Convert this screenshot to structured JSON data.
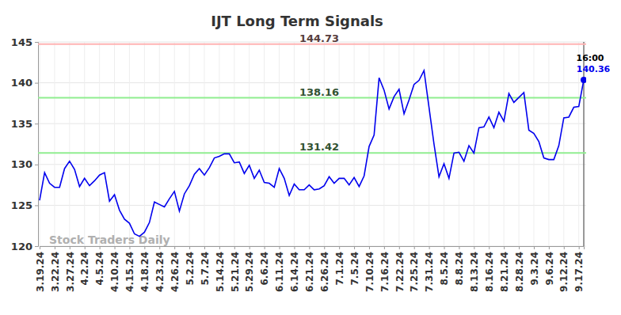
{
  "chart_data": {
    "type": "line",
    "title": "IJT Long Term Signals",
    "watermark": "Stock Traders Daily",
    "color": "#0000ee",
    "grid": true,
    "ylim": [
      120,
      145
    ],
    "yticks": [
      120,
      125,
      130,
      135,
      140,
      145
    ],
    "reference_lines": [
      {
        "value": 144.73,
        "color": "#ffb3b3"
      },
      {
        "value": 138.16,
        "color": "#90ee90"
      },
      {
        "value": 131.42,
        "color": "#90ee90"
      }
    ],
    "annotations": [
      {
        "text": "16:00"
      }
    ],
    "categories": [
      "3.19.24",
      null,
      null,
      "3.22.24",
      null,
      null,
      "3.27.24",
      null,
      null,
      "4.2.24",
      null,
      null,
      "4.5.24",
      null,
      null,
      "4.10.24",
      null,
      null,
      "4.15.24",
      null,
      null,
      "4.18.24",
      null,
      null,
      "4.23.24",
      null,
      null,
      "4.26.24",
      null,
      null,
      "5.2.24",
      null,
      null,
      "5.7.24",
      null,
      null,
      "5.14.24",
      null,
      null,
      "5.21.24",
      null,
      null,
      "5.29.24",
      null,
      null,
      "6.6.24",
      null,
      null,
      "6.11.24",
      null,
      null,
      "6.14.24",
      null,
      null,
      "6.21.24",
      null,
      null,
      "6.26.24",
      null,
      null,
      "7.1.24",
      null,
      null,
      "7.5.24",
      null,
      null,
      "7.10.24",
      null,
      null,
      "7.16.24",
      null,
      null,
      "7.22.24",
      null,
      null,
      "7.25.24",
      null,
      null,
      "7.31.24",
      null,
      null,
      "8.5.24",
      null,
      null,
      "8.8.24",
      null,
      null,
      "8.13.24",
      null,
      null,
      "8.16.24",
      null,
      null,
      "8.21.24",
      null,
      null,
      "8.28.24",
      null,
      null,
      "9.3.24",
      null,
      null,
      "9.6.24",
      null,
      null,
      "9.12.24",
      null,
      null,
      "9.17.24",
      null
    ],
    "values": [
      125.6,
      129.0,
      127.7,
      127.2,
      127.2,
      129.5,
      130.4,
      129.4,
      127.3,
      128.3,
      127.4,
      128.0,
      128.7,
      129.0,
      125.5,
      126.3,
      124.4,
      123.3,
      122.8,
      121.5,
      121.2,
      121.7,
      122.9,
      125.4,
      125.1,
      124.8,
      125.8,
      126.7,
      124.3,
      126.4,
      127.4,
      128.8,
      129.5,
      128.7,
      129.6,
      130.8,
      131.0,
      131.3,
      131.3,
      130.2,
      130.3,
      128.9,
      129.9,
      128.3,
      129.3,
      127.8,
      127.7,
      127.2,
      129.5,
      128.3,
      126.2,
      127.6,
      126.9,
      126.9,
      127.5,
      126.9,
      127.0,
      127.4,
      128.5,
      127.7,
      128.3,
      128.3,
      127.5,
      128.4,
      127.3,
      128.6,
      132.2,
      133.6,
      140.6,
      139.1,
      136.8,
      138.3,
      139.2,
      136.2,
      137.9,
      139.8,
      140.3,
      141.5,
      137.0,
      132.5,
      128.5,
      130.1,
      128.3,
      131.4,
      131.5,
      130.4,
      132.3,
      131.4,
      134.5,
      134.6,
      135.8,
      134.5,
      136.4,
      135.3,
      138.7,
      137.6,
      138.2,
      138.8,
      134.2,
      133.8,
      132.8,
      130.8,
      130.6,
      130.6,
      132.3,
      135.7,
      135.8,
      137.0,
      137.1,
      140.36
    ]
  }
}
